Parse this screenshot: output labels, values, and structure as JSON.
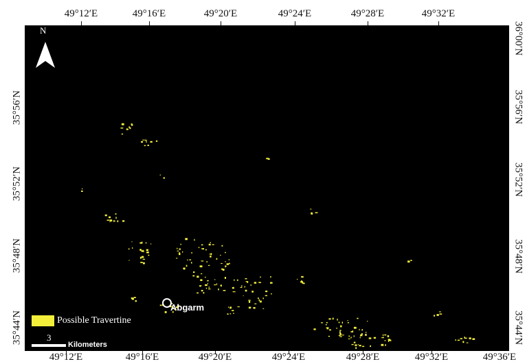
{
  "map": {
    "top_ticks": [
      "49°12′E",
      "49°16′E",
      "49°20′E",
      "49°24′E",
      "49°28′E",
      "49°32′E"
    ],
    "bottom_ticks": [
      "49°12′E",
      "49°16′E",
      "49°20′E",
      "49°24′E",
      "49°28′E",
      "49°32′E",
      "49°36′E"
    ],
    "left_ticks": [
      "35°56′N",
      "35°52′N",
      "35°48′N",
      "35°44′N"
    ],
    "right_ticks": [
      "36°00′N",
      "35°56′N",
      "35°52′N",
      "35°48′N",
      "35°44′N"
    ],
    "north_label": "N",
    "legend_label": "Possible Travertine",
    "scale_value": "3",
    "scale_unit": "Kilometers",
    "place_label": "Abgarm",
    "colors": {
      "background": "#000000",
      "travertine": "#f2ee3a",
      "annotation": "#ffffff"
    }
  }
}
